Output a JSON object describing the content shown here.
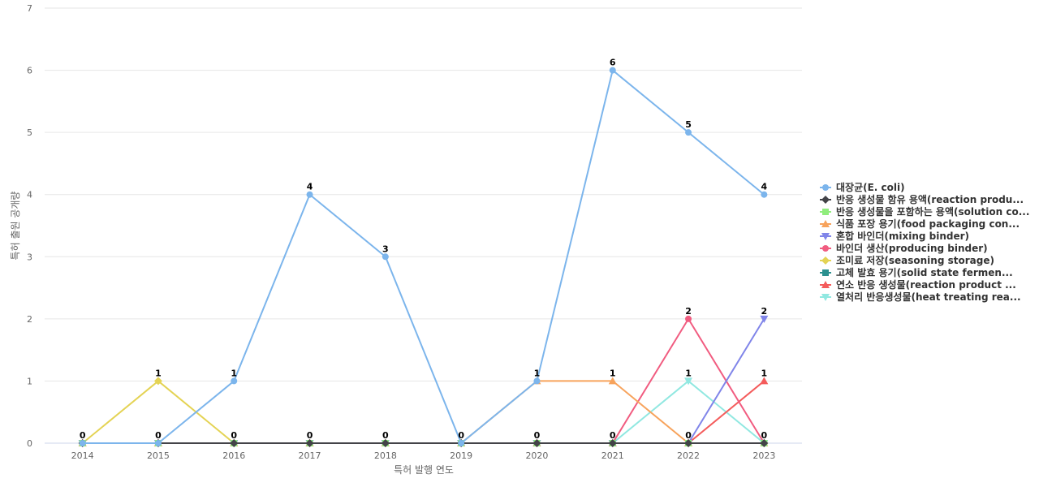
{
  "chart_data": {
    "type": "line",
    "xlabel": "특허 발행 연도",
    "ylabel": "특허 출원 공개량",
    "categories": [
      "2014",
      "2015",
      "2016",
      "2017",
      "2018",
      "2019",
      "2020",
      "2021",
      "2022",
      "2023"
    ],
    "ylim": [
      0,
      7
    ],
    "yticks": [
      "0",
      "1",
      "2",
      "3",
      "4",
      "5",
      "6",
      "7"
    ],
    "grid": true,
    "legend_position": "right",
    "series": [
      {
        "name": "대장균(E. coli)",
        "color": "#7cb5ec",
        "marker": "circle",
        "values": [
          0,
          0,
          1,
          4,
          3,
          0,
          1,
          6,
          5,
          4
        ]
      },
      {
        "name": "반응 생성물 함유 용액(reaction produ...",
        "color": "#434348",
        "marker": "diamond",
        "values": [
          0,
          0,
          0,
          0,
          0,
          0,
          0,
          0,
          0,
          0
        ]
      },
      {
        "name": "반응 생성물을 포함하는 용액(solution co...",
        "color": "#90ed7d",
        "marker": "square",
        "values": [
          0,
          0,
          0,
          0,
          0,
          0,
          0,
          0,
          0,
          0
        ]
      },
      {
        "name": "식품 포장 용기(food packaging con...",
        "color": "#f7a35c",
        "marker": "triangle",
        "values": [
          0,
          0,
          0,
          0,
          0,
          0,
          1,
          1,
          0,
          0
        ]
      },
      {
        "name": "혼합 바인더(mixing binder)",
        "color": "#8085e9",
        "marker": "triangle-down",
        "values": [
          0,
          0,
          0,
          0,
          0,
          0,
          0,
          0,
          0,
          2
        ]
      },
      {
        "name": "바인더 생산(producing binder)",
        "color": "#f15c80",
        "marker": "circle",
        "values": [
          0,
          0,
          0,
          0,
          0,
          0,
          0,
          0,
          2,
          0
        ]
      },
      {
        "name": "조미료 저장(seasoning storage)",
        "color": "#e4d354",
        "marker": "diamond",
        "values": [
          0,
          1,
          0,
          0,
          0,
          0,
          0,
          0,
          0,
          0
        ]
      },
      {
        "name": "고체 발효 용기(solid state fermen...",
        "color": "#2b908f",
        "marker": "square",
        "values": [
          0,
          0,
          0,
          0,
          0,
          0,
          0,
          0,
          0,
          0
        ]
      },
      {
        "name": "연소 반응 생성물(reaction product ...",
        "color": "#f45b5b",
        "marker": "triangle",
        "values": [
          0,
          0,
          0,
          0,
          0,
          0,
          0,
          0,
          0,
          1
        ]
      },
      {
        "name": "열처리 반응생성물(heat treating rea...",
        "color": "#91e8e1",
        "marker": "triangle-down",
        "values": [
          0,
          0,
          0,
          0,
          0,
          0,
          0,
          0,
          1,
          0
        ]
      }
    ],
    "data_labels": [
      {
        "series": 5,
        "index": 0,
        "text": "0"
      },
      {
        "series": 6,
        "index": 1,
        "text": "1"
      },
      {
        "series": 6,
        "index": 1,
        "text": "0",
        "below": true
      },
      {
        "series": 0,
        "index": 2,
        "text": "1"
      },
      {
        "series": 0,
        "index": 2,
        "text": "0",
        "below": true
      },
      {
        "series": 0,
        "index": 3,
        "text": "4"
      },
      {
        "series": 0,
        "index": 3,
        "text": "0",
        "below": true
      },
      {
        "series": 0,
        "index": 4,
        "text": "3"
      },
      {
        "series": 0,
        "index": 4,
        "text": "0",
        "below": true
      },
      {
        "series": 0,
        "index": 5,
        "text": "0"
      },
      {
        "series": 0,
        "index": 6,
        "text": "1"
      },
      {
        "series": 0,
        "index": 6,
        "text": "0",
        "below": true
      },
      {
        "series": 0,
        "index": 7,
        "text": "6"
      },
      {
        "series": 3,
        "index": 7,
        "text": "1"
      },
      {
        "series": 3,
        "index": 7,
        "text": "0",
        "below": true
      },
      {
        "series": 0,
        "index": 8,
        "text": "5"
      },
      {
        "series": 5,
        "index": 8,
        "text": "2"
      },
      {
        "series": 9,
        "index": 8,
        "text": "1"
      },
      {
        "series": 3,
        "index": 8,
        "text": "0",
        "below": true
      },
      {
        "series": 0,
        "index": 9,
        "text": "4"
      },
      {
        "series": 4,
        "index": 9,
        "text": "2"
      },
      {
        "series": 8,
        "index": 9,
        "text": "1"
      },
      {
        "series": 9,
        "index": 9,
        "text": "0"
      }
    ]
  }
}
